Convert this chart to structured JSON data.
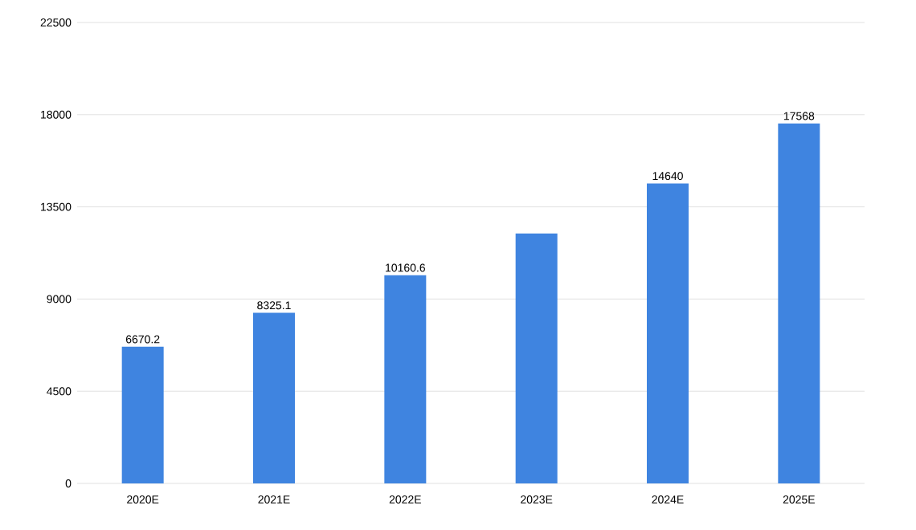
{
  "chart_data": {
    "type": "bar",
    "categories": [
      "2020E",
      "2021E",
      "2022E",
      "2023E",
      "2024E",
      "2025E"
    ],
    "values": [
      6670.2,
      8325.1,
      10160.6,
      12200,
      14640,
      17568
    ],
    "value_labels": [
      "6670.2",
      "8325.1",
      "10160.6",
      null,
      "14640",
      "17568"
    ],
    "color": "#3f84e0",
    "ylim": [
      0,
      22500
    ],
    "yticks": [
      0,
      4500,
      9000,
      13500,
      18000,
      22500
    ],
    "grid": "y"
  }
}
